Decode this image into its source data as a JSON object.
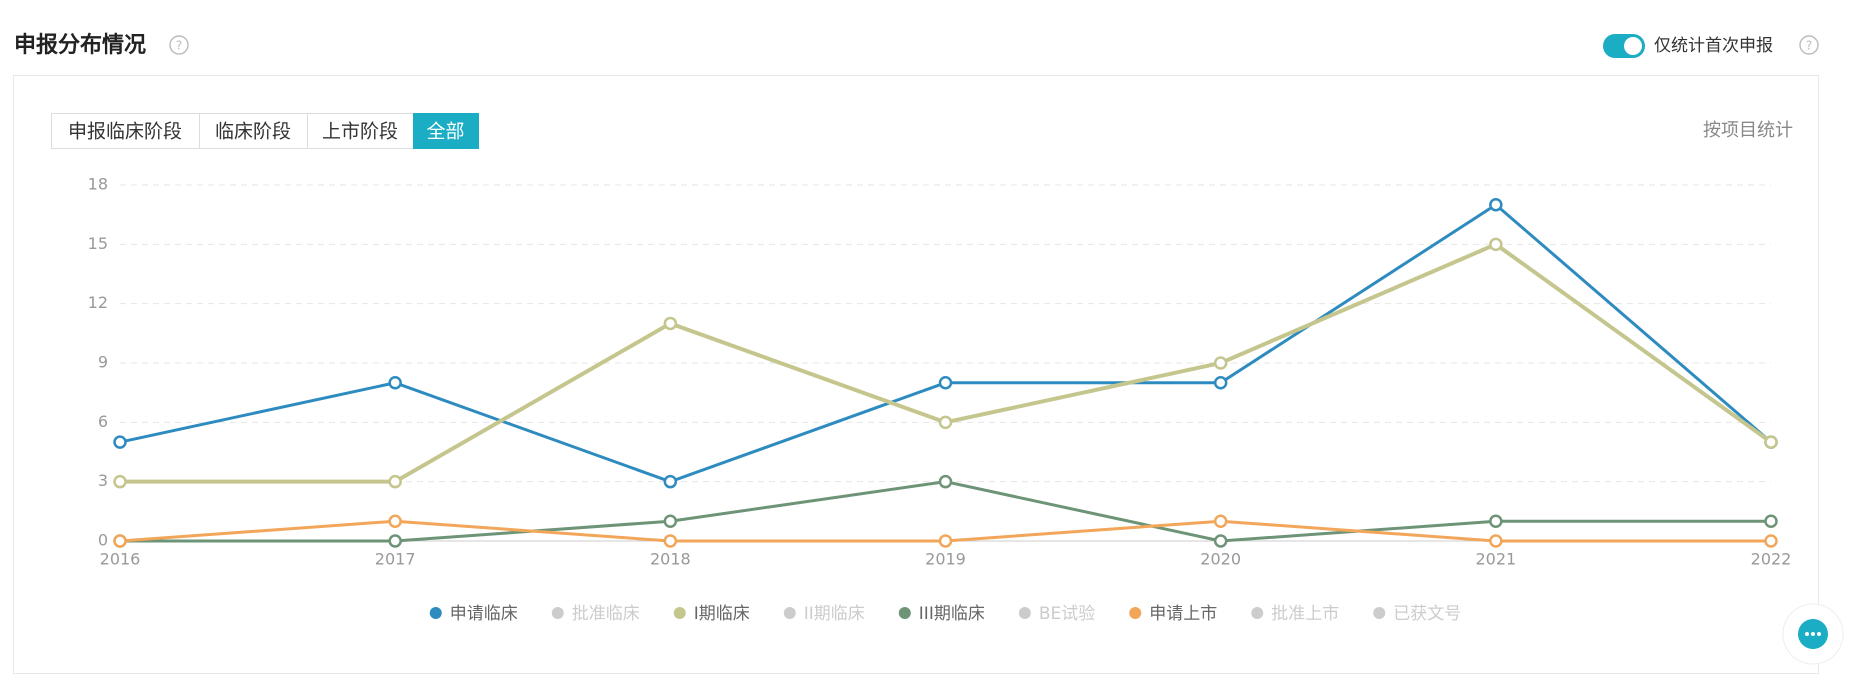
{
  "header": {
    "title": "申报分布情况",
    "toggle_label": "仅统计首次申报"
  },
  "tabs": [
    "申报临床阶段",
    "临床阶段",
    "上市阶段",
    "全部"
  ],
  "active_tab": 3,
  "side_label": "按项目统计",
  "chart_data": {
    "type": "line",
    "categories": [
      "2016",
      "2017",
      "2018",
      "2019",
      "2020",
      "2021",
      "2022"
    ],
    "series": [
      {
        "name": "申请临床",
        "color": "#2e8bc0",
        "visible": true,
        "values": [
          5,
          8,
          3,
          8,
          8,
          17,
          5
        ]
      },
      {
        "name": "批准临床",
        "color": "#cccccc",
        "visible": false
      },
      {
        "name": "I期临床",
        "color": "#c5c68e",
        "visible": true,
        "values": [
          3,
          3,
          11,
          6,
          9,
          15,
          5
        ]
      },
      {
        "name": "II期临床",
        "color": "#cccccc",
        "visible": false
      },
      {
        "name": "III期临床",
        "color": "#6e9478",
        "visible": true,
        "values": [
          0,
          0,
          1,
          3,
          0,
          1,
          1
        ]
      },
      {
        "name": "BE试验",
        "color": "#cccccc",
        "visible": false
      },
      {
        "name": "申请上市",
        "color": "#f2a65a",
        "visible": true,
        "values": [
          0,
          1,
          0,
          0,
          1,
          0,
          0
        ]
      },
      {
        "name": "批准上市",
        "color": "#cccccc",
        "visible": false
      },
      {
        "name": "已获文号",
        "color": "#cccccc",
        "visible": false
      }
    ],
    "ylim": [
      0,
      18
    ],
    "yticks": [
      0,
      3,
      6,
      9,
      12,
      15,
      18
    ],
    "grid": true
  }
}
